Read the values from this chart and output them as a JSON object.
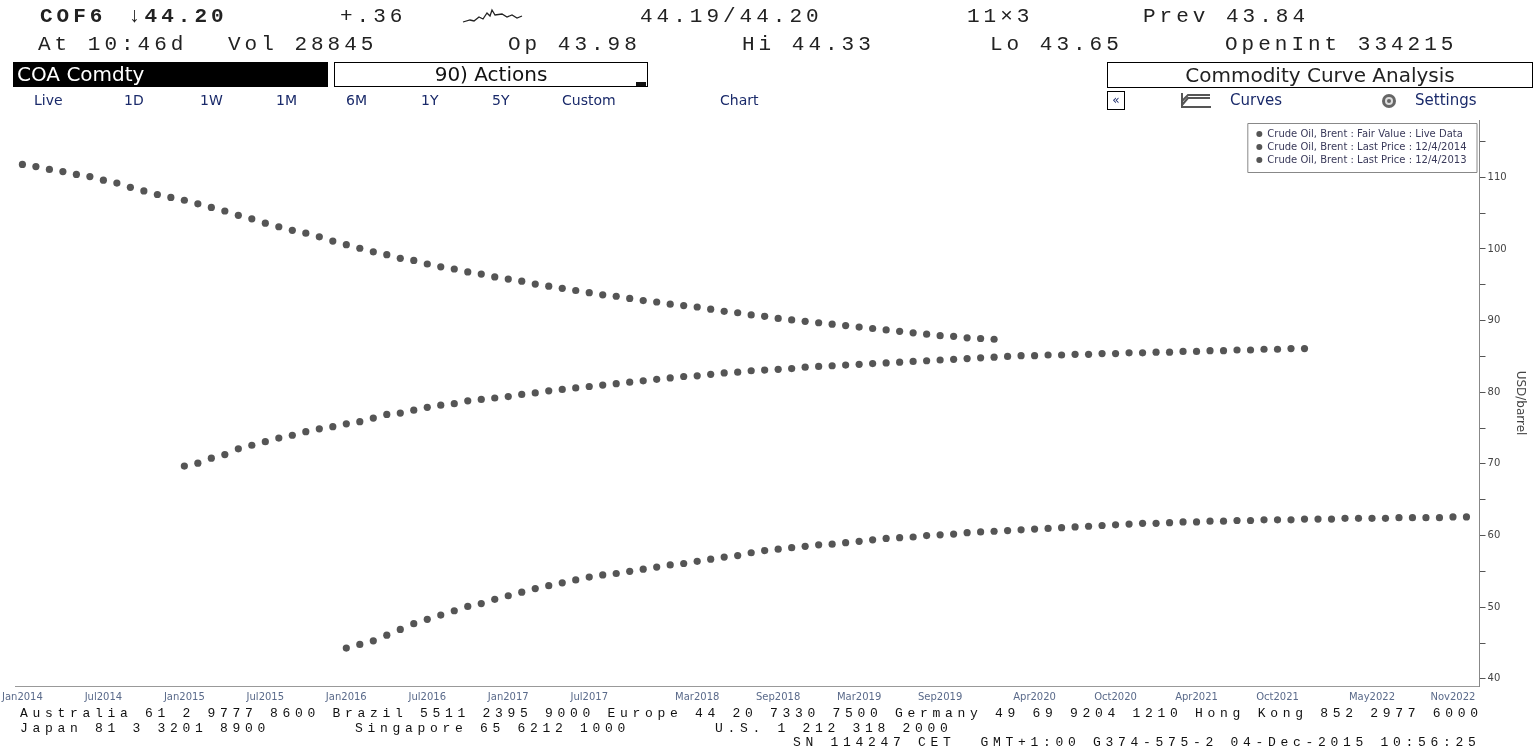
{
  "chart_data": {
    "type": "scatter",
    "title": "Commodity Curve Analysis",
    "ylabel": "USD/barrel",
    "annotations": [
      "COF6",
      "↓44.20",
      "+.36",
      "44.19/44.20",
      "11×3",
      "Prev 43.84",
      "At 10:46d",
      "Vol 28845",
      "Op 43.98",
      "Hi 44.33",
      "Lo 43.65",
      "OpenInt 334215",
      "COA Comdty",
      "90) Actions",
      "Live",
      "1D",
      "1W",
      "1M",
      "6M",
      "1Y",
      "5Y",
      "Custom",
      "Chart",
      "«",
      "Curves",
      "Settings",
      "Australia 61 2 9777 8600 Brazil 5511 2395 9000 Europe 44 20 7330 7500 Germany 49 69 9204 1210 Hong Kong 852 2977 6000",
      "Japan 81 3 3201 8900",
      "Singapore 65 6212 1000",
      "U.S. 1 212 318 2000",
      "SN 114247 CET  GMT+1:00 G374-575-2 04-Dec-2015 10:56:25"
    ],
    "xlim": [
      "2013-12-15",
      "2022-12-31"
    ],
    "xticks": [
      {
        "value": "2014-01",
        "label": "Jan2014"
      },
      {
        "value": "2014-07",
        "label": "Jul2014"
      },
      {
        "value": "2015-01",
        "label": "Jan2015"
      },
      {
        "value": "2015-07",
        "label": "Jul2015"
      },
      {
        "value": "2016-01",
        "label": "Jan2016"
      },
      {
        "value": "2016-07",
        "label": "Jul2016"
      },
      {
        "value": "2017-01",
        "label": "Jan2017"
      },
      {
        "value": "2017-07",
        "label": "Jul2017"
      },
      {
        "value": "2018-03",
        "label": "Mar2018"
      },
      {
        "value": "2018-09",
        "label": "Sep2018"
      },
      {
        "value": "2019-03",
        "label": "Mar2019"
      },
      {
        "value": "2019-09",
        "label": "Sep2019"
      },
      {
        "value": "2020-04",
        "label": "Apr2020"
      },
      {
        "value": "2020-10",
        "label": "Oct2020"
      },
      {
        "value": "2021-04",
        "label": "Apr2021"
      },
      {
        "value": "2021-10",
        "label": "Oct2021"
      },
      {
        "value": "2022-05",
        "label": "May2022"
      },
      {
        "value": "2022-11",
        "label": "Nov2022"
      }
    ],
    "ylim": [
      39,
      118
    ],
    "yticks": [
      40,
      {
        "value": 45,
        "label": null
      },
      50,
      {
        "value": 55,
        "label": null
      },
      60,
      {
        "value": 65,
        "label": null
      },
      70,
      {
        "value": 75,
        "label": null
      },
      80,
      {
        "value": 85,
        "label": null
      },
      90,
      {
        "value": 95,
        "label": null
      },
      100,
      {
        "value": 105,
        "label": null
      },
      110,
      {
        "value": 115,
        "label": null
      }
    ],
    "legend": "top right",
    "marker": "circle",
    "series": [
      {
        "name": "Crude Oil, Brent : Fair Value : Live Data",
        "color": "#555555",
        "x": [
          "2016-01",
          "2016-02",
          "2016-03",
          "2016-04",
          "2016-05",
          "2016-06",
          "2016-07",
          "2016-08",
          "2016-09",
          "2016-10",
          "2016-11",
          "2016-12",
          "2017-01",
          "2017-02",
          "2017-03",
          "2017-04",
          "2017-05",
          "2017-06",
          "2017-07",
          "2017-08",
          "2017-09",
          "2017-10",
          "2017-11",
          "2017-12",
          "2018-01",
          "2018-02",
          "2018-03",
          "2018-04",
          "2018-05",
          "2018-06",
          "2018-07",
          "2018-08",
          "2018-09",
          "2018-10",
          "2018-11",
          "2018-12",
          "2019-01",
          "2019-02",
          "2019-03",
          "2019-04",
          "2019-05",
          "2019-06",
          "2019-07",
          "2019-08",
          "2019-09",
          "2019-10",
          "2019-11",
          "2019-12",
          "2020-01",
          "2020-02",
          "2020-03",
          "2020-04",
          "2020-05",
          "2020-06",
          "2020-07",
          "2020-08",
          "2020-09",
          "2020-10",
          "2020-11",
          "2020-12",
          "2021-01",
          "2021-02",
          "2021-03",
          "2021-04",
          "2021-05",
          "2021-06",
          "2021-07",
          "2021-08",
          "2021-09",
          "2021-10",
          "2021-11",
          "2021-12",
          "2022-01",
          "2022-02",
          "2022-03",
          "2022-04",
          "2022-05",
          "2022-06",
          "2022-07",
          "2022-08",
          "2022-09",
          "2022-10",
          "2022-11",
          "2022-12"
        ],
        "values": [
          44.3,
          44.8,
          45.3,
          46.1,
          46.9,
          47.7,
          48.3,
          48.9,
          49.5,
          50.1,
          50.5,
          51.1,
          51.6,
          52.1,
          52.6,
          53.0,
          53.4,
          53.8,
          54.2,
          54.5,
          54.7,
          55.0,
          55.3,
          55.6,
          55.9,
          56.1,
          56.4,
          56.7,
          57.0,
          57.2,
          57.6,
          57.9,
          58.1,
          58.3,
          58.5,
          58.7,
          58.8,
          59.0,
          59.2,
          59.4,
          59.6,
          59.7,
          59.8,
          60.0,
          60.1,
          60.2,
          60.4,
          60.5,
          60.6,
          60.7,
          60.8,
          60.9,
          61.0,
          61.1,
          61.2,
          61.3,
          61.4,
          61.5,
          61.6,
          61.7,
          61.7,
          61.8,
          61.9,
          61.9,
          62.0,
          62.0,
          62.1,
          62.1,
          62.2,
          62.2,
          62.2,
          62.3,
          62.3,
          62.3,
          62.4,
          62.4,
          62.4,
          62.4,
          62.5,
          62.5,
          62.5,
          62.5,
          62.6,
          62.6
        ]
      },
      {
        "name": "Crude Oil, Brent : Last Price : 12/4/2014",
        "color": "#555555",
        "x": [
          "2015-01",
          "2015-02",
          "2015-03",
          "2015-04",
          "2015-05",
          "2015-06",
          "2015-07",
          "2015-08",
          "2015-09",
          "2015-10",
          "2015-11",
          "2015-12",
          "2016-01",
          "2016-02",
          "2016-03",
          "2016-04",
          "2016-05",
          "2016-06",
          "2016-07",
          "2016-08",
          "2016-09",
          "2016-10",
          "2016-11",
          "2016-12",
          "2017-01",
          "2017-02",
          "2017-03",
          "2017-04",
          "2017-05",
          "2017-06",
          "2017-07",
          "2017-08",
          "2017-09",
          "2017-10",
          "2017-11",
          "2017-12",
          "2018-01",
          "2018-02",
          "2018-03",
          "2018-04",
          "2018-05",
          "2018-06",
          "2018-07",
          "2018-08",
          "2018-09",
          "2018-10",
          "2018-11",
          "2018-12",
          "2019-01",
          "2019-02",
          "2019-03",
          "2019-04",
          "2019-05",
          "2019-06",
          "2019-07",
          "2019-08",
          "2019-09",
          "2019-10",
          "2019-11",
          "2019-12",
          "2020-01",
          "2020-02",
          "2020-03",
          "2020-04",
          "2020-05",
          "2020-06",
          "2020-07",
          "2020-08",
          "2020-09",
          "2020-10",
          "2020-11",
          "2020-12",
          "2021-01",
          "2021-02",
          "2021-03",
          "2021-04",
          "2021-05",
          "2021-06",
          "2021-07",
          "2021-08",
          "2021-09",
          "2021-10",
          "2021-11",
          "2021-12"
        ],
        "values": [
          69.7,
          70.1,
          70.8,
          71.3,
          72.1,
          72.6,
          73.1,
          73.6,
          74.0,
          74.5,
          74.9,
          75.2,
          75.6,
          75.9,
          76.4,
          76.9,
          77.1,
          77.5,
          77.9,
          78.2,
          78.4,
          78.8,
          79.0,
          79.2,
          79.4,
          79.7,
          79.9,
          80.2,
          80.4,
          80.6,
          80.8,
          81.0,
          81.2,
          81.4,
          81.6,
          81.8,
          82.0,
          82.2,
          82.3,
          82.5,
          82.7,
          82.8,
          83.0,
          83.1,
          83.2,
          83.3,
          83.5,
          83.6,
          83.7,
          83.8,
          83.9,
          84.0,
          84.1,
          84.2,
          84.3,
          84.4,
          84.5,
          84.6,
          84.7,
          84.8,
          84.9,
          85.0,
          85.1,
          85.1,
          85.2,
          85.2,
          85.3,
          85.3,
          85.4,
          85.4,
          85.5,
          85.5,
          85.6,
          85.6,
          85.7,
          85.7,
          85.8,
          85.8,
          85.9,
          85.9,
          86.0,
          86.0,
          86.1,
          86.1
        ]
      },
      {
        "name": "Crude Oil, Brent : Last Price : 12/4/2013",
        "color": "#555555",
        "x": [
          "2014-01",
          "2014-02",
          "2014-03",
          "2014-04",
          "2014-05",
          "2014-06",
          "2014-07",
          "2014-08",
          "2014-09",
          "2014-10",
          "2014-11",
          "2014-12",
          "2015-01",
          "2015-02",
          "2015-03",
          "2015-04",
          "2015-05",
          "2015-06",
          "2015-07",
          "2015-08",
          "2015-09",
          "2015-10",
          "2015-11",
          "2015-12",
          "2016-01",
          "2016-02",
          "2016-03",
          "2016-04",
          "2016-05",
          "2016-06",
          "2016-07",
          "2016-08",
          "2016-09",
          "2016-10",
          "2016-11",
          "2016-12",
          "2017-01",
          "2017-02",
          "2017-03",
          "2017-04",
          "2017-05",
          "2017-06",
          "2017-07",
          "2017-08",
          "2017-09",
          "2017-10",
          "2017-11",
          "2017-12",
          "2018-01",
          "2018-02",
          "2018-03",
          "2018-04",
          "2018-05",
          "2018-06",
          "2018-07",
          "2018-08",
          "2018-09",
          "2018-10",
          "2018-11",
          "2018-12",
          "2019-01",
          "2019-02",
          "2019-03",
          "2019-04",
          "2019-05",
          "2019-06",
          "2019-07",
          "2019-08",
          "2019-09",
          "2019-10",
          "2019-11",
          "2019-12",
          "2020-01"
        ],
        "values": [
          111.8,
          111.5,
          111.1,
          110.8,
          110.4,
          110.1,
          109.6,
          109.2,
          108.6,
          108.1,
          107.6,
          107.2,
          106.8,
          106.3,
          105.8,
          105.3,
          104.7,
          104.2,
          103.6,
          103.1,
          102.6,
          102.2,
          101.7,
          101.1,
          100.6,
          100.1,
          99.6,
          99.2,
          98.7,
          98.4,
          97.9,
          97.5,
          97.2,
          96.8,
          96.5,
          96.1,
          95.8,
          95.5,
          95.1,
          94.8,
          94.5,
          94.2,
          93.9,
          93.6,
          93.4,
          93.1,
          92.8,
          92.6,
          92.3,
          92.1,
          91.9,
          91.6,
          91.3,
          91.1,
          90.8,
          90.6,
          90.3,
          90.1,
          89.9,
          89.7,
          89.5,
          89.3,
          89.1,
          88.9,
          88.7,
          88.5,
          88.3,
          88.1,
          87.9,
          87.8,
          87.6,
          87.5,
          87.4
        ]
      }
    ]
  }
}
